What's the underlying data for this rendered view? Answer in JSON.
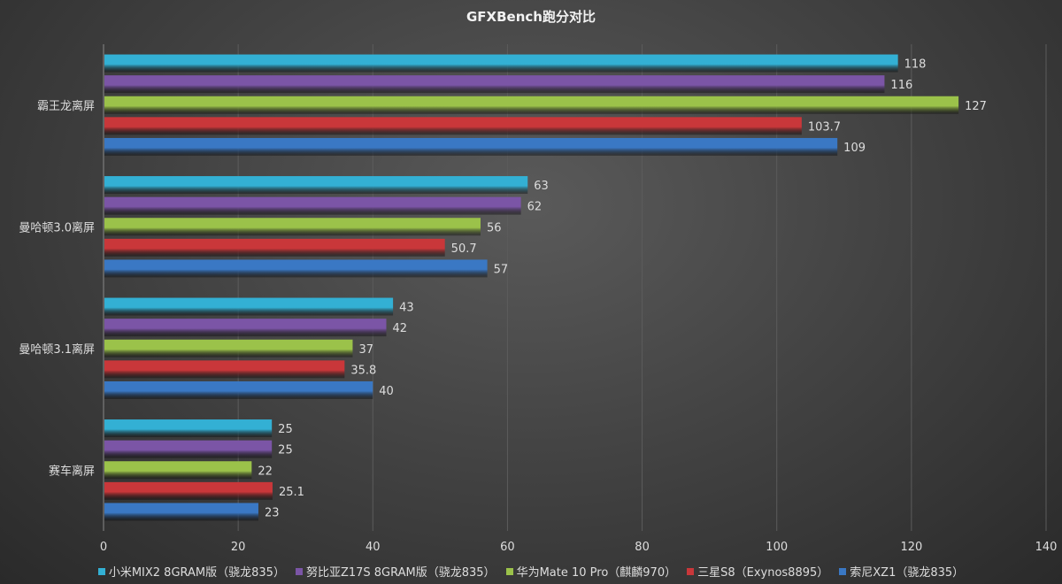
{
  "chart_data": {
    "type": "bar",
    "orientation": "horizontal",
    "title": "GFXBench跑分对比",
    "categories": [
      "霸王龙离屏",
      "曼哈顿3.0离屏",
      "曼哈顿3.1离屏",
      "赛车离屏"
    ],
    "series": [
      {
        "name": "小米MIX2 8GRAM版（骁龙835）",
        "color": "#33b0d4",
        "values": [
          118,
          63,
          43,
          25
        ]
      },
      {
        "name": "努比亚Z17S 8GRAM版（骁龙835）",
        "color": "#7b55a6",
        "values": [
          116,
          62,
          42,
          25
        ]
      },
      {
        "name": "华为Mate 10 Pro（麒麟970）",
        "color": "#9bc24a",
        "values": [
          127,
          56,
          37,
          22
        ]
      },
      {
        "name": "三星S8（Exynos8895）",
        "color": "#c9373a",
        "values": [
          103.7,
          50.7,
          35.8,
          25.1
        ]
      },
      {
        "name": "索尼XZ1（骁龙835）",
        "color": "#3a78c4",
        "values": [
          109,
          57,
          40,
          23
        ]
      }
    ],
    "xlim": [
      0,
      140
    ],
    "xticks": [
      0,
      20,
      40,
      60,
      80,
      100,
      120,
      140
    ],
    "grid": true,
    "legend": "bottom"
  }
}
